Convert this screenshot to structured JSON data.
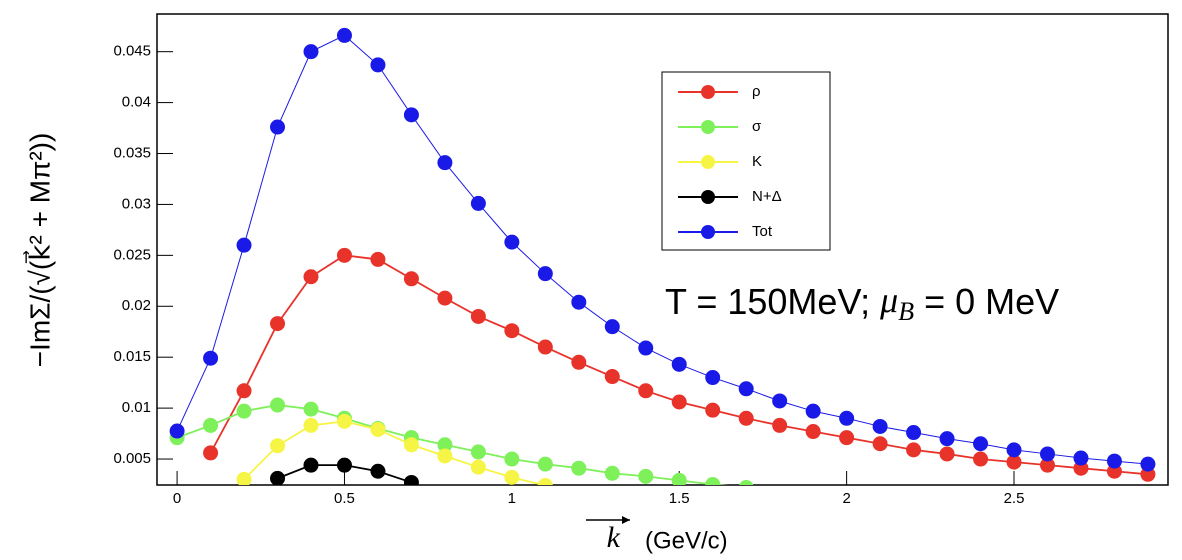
{
  "chart_data": {
    "type": "line",
    "x": [
      0,
      0.1,
      0.2,
      0.3,
      0.4,
      0.5,
      0.6,
      0.7,
      0.8,
      0.9,
      1.0,
      1.1,
      1.2,
      1.3,
      1.4,
      1.5,
      1.6,
      1.7,
      1.8,
      1.9,
      2.0,
      2.1,
      2.2,
      2.3,
      2.4,
      2.5,
      2.6,
      2.7,
      2.8,
      2.9
    ],
    "series": [
      {
        "name": "ρ",
        "color": "#e8332b",
        "values": [
          null,
          0.0056,
          0.0117,
          0.0183,
          0.0229,
          0.025,
          0.0246,
          0.0227,
          0.0208,
          0.019,
          0.0176,
          0.016,
          0.0145,
          0.0131,
          0.0117,
          0.0106,
          0.0098,
          0.009,
          0.0083,
          0.0077,
          0.0071,
          0.0065,
          0.0059,
          0.0055,
          0.005,
          0.0047,
          0.0044,
          0.0041,
          0.0038,
          0.0035
        ]
      },
      {
        "name": "σ",
        "color": "#7ef05a",
        "values": [
          0.0071,
          0.0083,
          0.0097,
          0.0103,
          0.0099,
          0.009,
          0.008,
          0.0071,
          0.0064,
          0.0057,
          0.005,
          0.0045,
          0.0041,
          0.0036,
          0.0033,
          0.0029,
          0.0025,
          0.0022,
          null,
          null,
          null,
          null,
          null,
          null,
          null,
          null,
          null,
          null,
          null,
          null
        ]
      },
      {
        "name": "K",
        "color": "#f6f545",
        "values": [
          null,
          null,
          0.003,
          0.0063,
          0.0083,
          0.0087,
          0.0079,
          0.0064,
          0.0053,
          0.0042,
          0.0032,
          0.0024,
          null,
          null,
          null,
          null,
          null,
          null,
          null,
          null,
          null,
          null,
          null,
          null,
          null,
          null,
          null,
          null,
          null,
          null
        ]
      },
      {
        "name": "N+Δ",
        "color": "#000000",
        "values": [
          null,
          null,
          null,
          0.0031,
          0.0044,
          0.0044,
          0.0038,
          0.0027,
          null,
          null,
          null,
          null,
          null,
          null,
          null,
          null,
          null,
          null,
          null,
          null,
          null,
          null,
          null,
          null,
          null,
          null,
          null,
          null,
          null,
          null
        ]
      },
      {
        "name": "Tot",
        "color": "#1a1ae8",
        "values": [
          0.00775,
          0.0149,
          0.026,
          0.0376,
          0.045,
          0.0466,
          0.0437,
          0.0388,
          0.0341,
          0.0301,
          0.0263,
          0.0232,
          0.0204,
          0.018,
          0.0159,
          0.0143,
          0.013,
          0.0119,
          0.0107,
          0.0097,
          0.009,
          0.0082,
          0.0076,
          0.007,
          0.0065,
          0.0059,
          0.0055,
          0.0051,
          0.0048,
          0.0045
        ]
      }
    ],
    "xlim": [
      -0.06,
      2.96
    ],
    "ylim": [
      0.00245,
      0.0487
    ],
    "xticks": [
      0,
      0.5,
      1,
      1.5,
      2,
      2.5
    ],
    "yticks": [
      0.005,
      0.01,
      0.015,
      0.02,
      0.025,
      0.03,
      0.035,
      0.04,
      0.045
    ],
    "xlabel": {
      "vector": "k",
      "unit": "(GeV/c)"
    },
    "ylabel": "−ImΣ/(√(k⃗² + Mπ²))",
    "annotation": {
      "prefix": "T = 150MeV;",
      "symbol": "μ",
      "subscript": "B",
      "suffix": "= 0 MeV"
    },
    "legend": "upper center"
  }
}
